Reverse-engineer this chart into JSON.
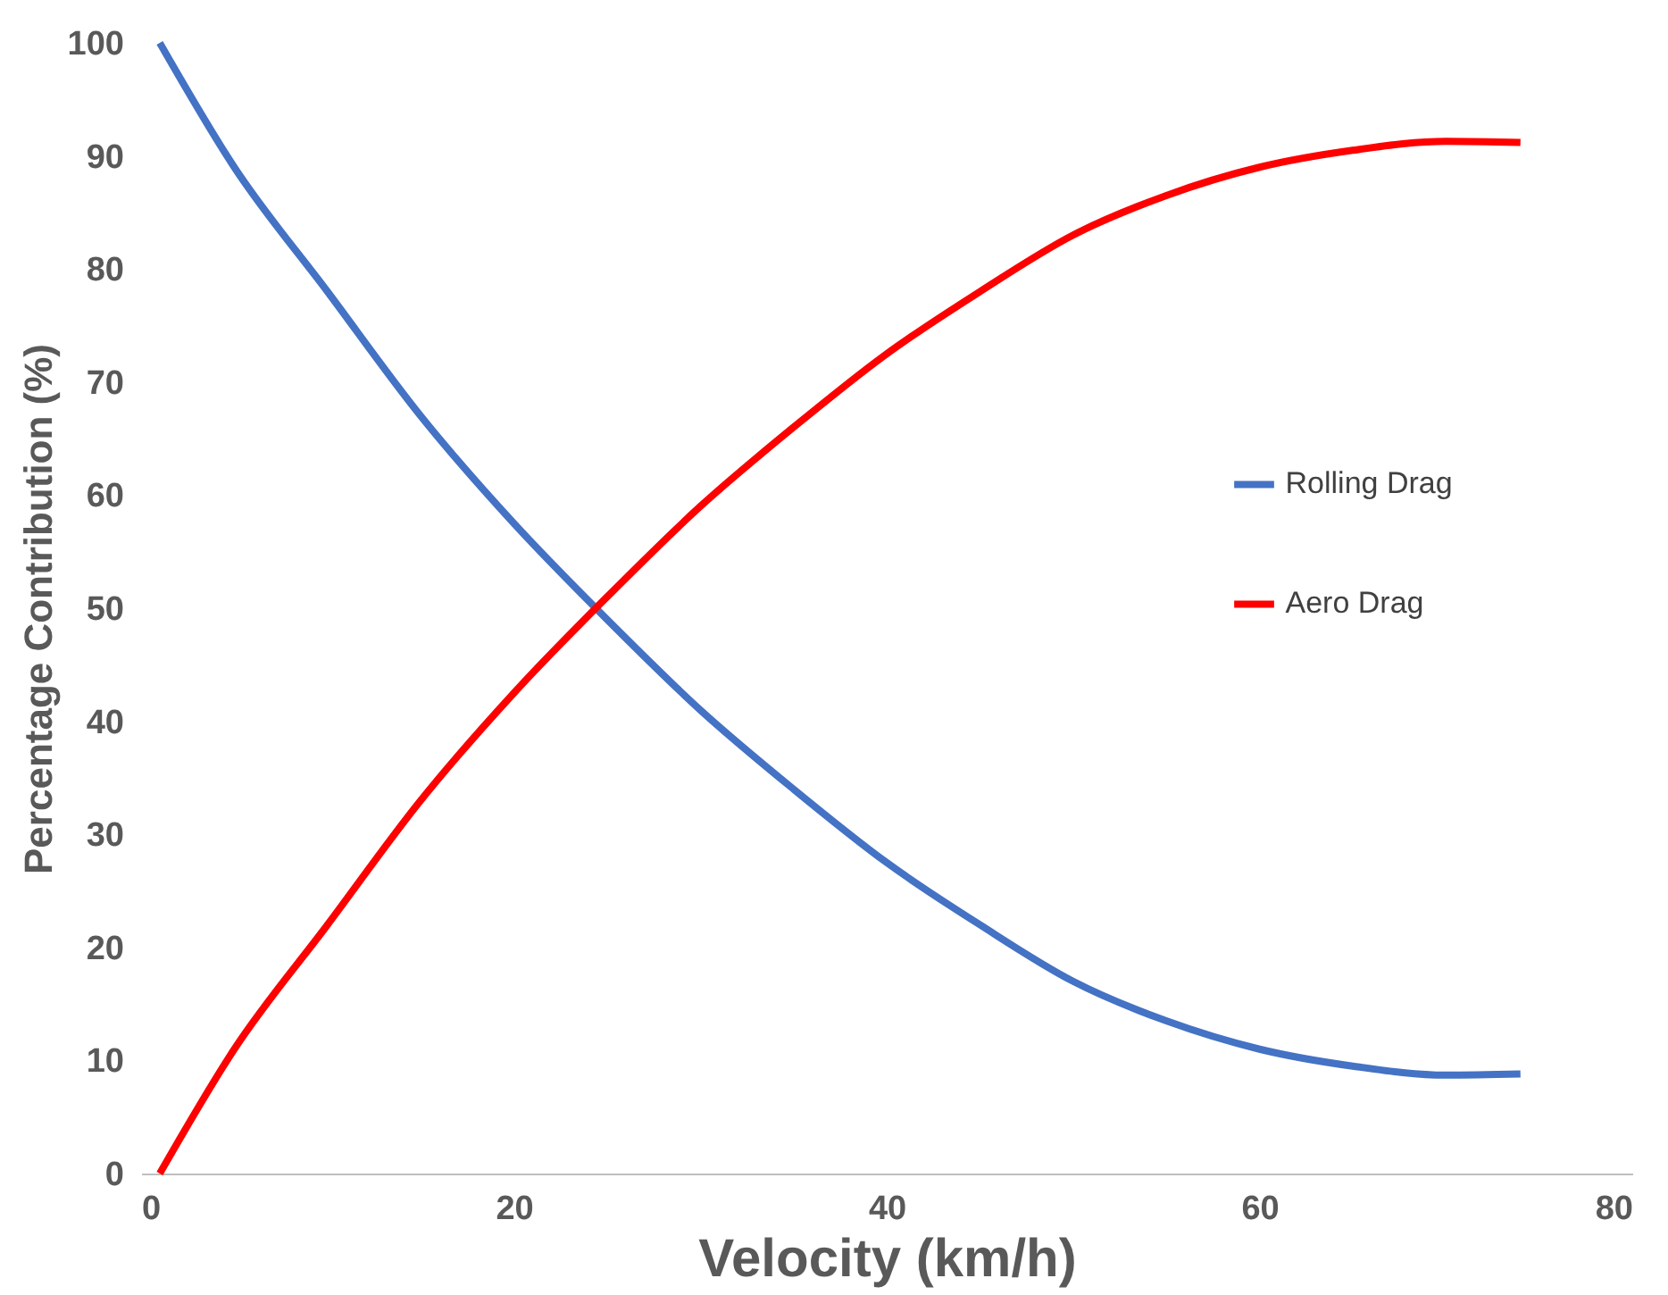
{
  "chart_data": {
    "type": "line",
    "xlabel": "Velocity (km/h)",
    "ylabel": "Percentage Contribution (%)",
    "x": [
      1,
      5,
      10,
      15,
      20,
      25,
      30,
      35,
      40,
      45,
      50,
      55,
      60,
      65,
      70,
      74
    ],
    "series": [
      {
        "name": "Rolling Drag",
        "color": "#4472c4",
        "values": [
          100,
          89,
          78,
          67,
          57.5,
          49,
          41,
          34,
          27.5,
          22,
          17,
          13.5,
          11,
          9.5,
          8.7,
          8.8
        ]
      },
      {
        "name": "Aero Drag",
        "color": "#ff0000",
        "values": [
          0,
          11,
          22,
          33,
          42.5,
          51,
          59,
          66,
          72.5,
          78,
          83,
          86.5,
          89,
          90.5,
          91.3,
          91.2
        ]
      }
    ],
    "xlim": [
      0,
      80
    ],
    "xticks": [
      0,
      20,
      40,
      60,
      80
    ],
    "ylim": [
      0,
      100
    ],
    "yticks": [
      0,
      10,
      20,
      30,
      40,
      50,
      60,
      70,
      80,
      90,
      100
    ],
    "grid": false,
    "legend": "right",
    "marker": "none",
    "line_style": "solid"
  }
}
